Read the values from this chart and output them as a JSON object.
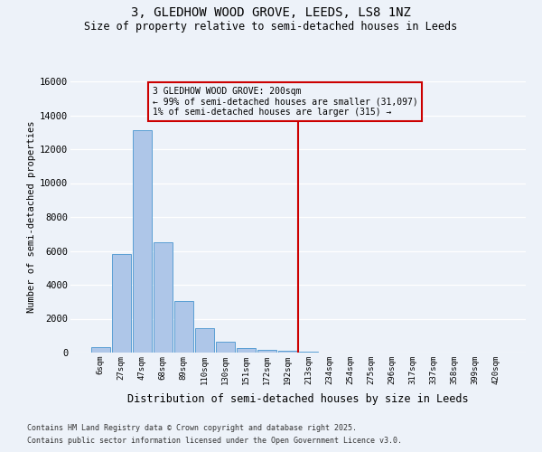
{
  "title1": "3, GLEDHOW WOOD GROVE, LEEDS, LS8 1NZ",
  "title2": "Size of property relative to semi-detached houses in Leeds",
  "xlabel": "Distribution of semi-detached houses by size in Leeds",
  "ylabel": "Number of semi-detached properties",
  "categories": [
    "6sqm",
    "27sqm",
    "47sqm",
    "68sqm",
    "89sqm",
    "110sqm",
    "130sqm",
    "151sqm",
    "172sqm",
    "192sqm",
    "213sqm",
    "234sqm",
    "254sqm",
    "275sqm",
    "296sqm",
    "317sqm",
    "337sqm",
    "358sqm",
    "399sqm",
    "420sqm"
  ],
  "values": [
    300,
    5800,
    13100,
    6500,
    3050,
    1450,
    650,
    270,
    180,
    110,
    70,
    0,
    0,
    0,
    0,
    0,
    0,
    0,
    0,
    0
  ],
  "bar_color": "#aec6e8",
  "bar_edge_color": "#5a9fd4",
  "vline_x_idx": 9.5,
  "vline_color": "#cc0000",
  "ylim": [
    0,
    16000
  ],
  "yticks": [
    0,
    2000,
    4000,
    6000,
    8000,
    10000,
    12000,
    14000,
    16000
  ],
  "annotation_title": "3 GLEDHOW WOOD GROVE: 200sqm",
  "annotation_line1": "← 99% of semi-detached houses are smaller (31,097)",
  "annotation_line2": "1% of semi-detached houses are larger (315) →",
  "annotation_box_color": "#cc0000",
  "footer1": "Contains HM Land Registry data © Crown copyright and database right 2025.",
  "footer2": "Contains public sector information licensed under the Open Government Licence v3.0.",
  "bg_color": "#edf2f9",
  "grid_color": "white"
}
